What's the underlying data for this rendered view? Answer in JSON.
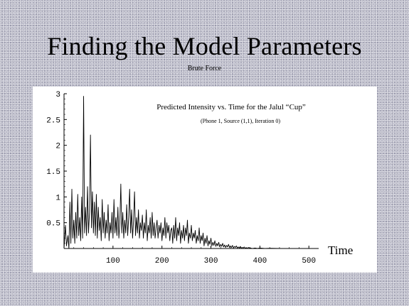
{
  "slide": {
    "title": "Finding the Model Parameters",
    "subtitle": "Brute Force"
  },
  "chart_data": {
    "type": "line",
    "title": "Predicted Intensity vs. Time for the Jalul “Cup”",
    "subtitle": "(Phone 1, Source (1,1), Iteration 0)",
    "xlabel": "Time",
    "ylabel": "",
    "xlim": [
      0,
      520
    ],
    "ylim": [
      0,
      3
    ],
    "x_ticks": [
      100,
      200,
      300,
      400,
      500
    ],
    "y_ticks": [
      0.5,
      1,
      1.5,
      2,
      2.5,
      3
    ],
    "x_tick_labels": [
      "100",
      "200",
      "300",
      "400",
      "500"
    ],
    "y_tick_labels": [
      "0.5",
      "1",
      "1.5",
      "2",
      "2.5",
      "3"
    ],
    "grid": false,
    "series": [
      {
        "color": "#000000",
        "points": [
          [
            0,
            0
          ],
          [
            3,
            0.45
          ],
          [
            5,
            0.05
          ],
          [
            8,
            0.25
          ],
          [
            10,
            0
          ],
          [
            12,
            0.9
          ],
          [
            14,
            0.1
          ],
          [
            16,
            1.15
          ],
          [
            18,
            0.2
          ],
          [
            20,
            0.55
          ],
          [
            22,
            0.1
          ],
          [
            24,
            0.7
          ],
          [
            26,
            0.2
          ],
          [
            28,
            1.05
          ],
          [
            30,
            0.25
          ],
          [
            32,
            0.6
          ],
          [
            34,
            0.15
          ],
          [
            36,
            1.0
          ],
          [
            38,
            0.2
          ],
          [
            40,
            2.95
          ],
          [
            42,
            0.3
          ],
          [
            44,
            0.8
          ],
          [
            46,
            0.25
          ],
          [
            48,
            1.2
          ],
          [
            50,
            0.3
          ],
          [
            52,
            0.7
          ],
          [
            54,
            2.2
          ],
          [
            56,
            0.4
          ],
          [
            58,
            1.1
          ],
          [
            60,
            0.3
          ],
          [
            62,
            0.9
          ],
          [
            64,
            0.25
          ],
          [
            66,
            1.05
          ],
          [
            68,
            0.2
          ],
          [
            70,
            0.8
          ],
          [
            72,
            0.35
          ],
          [
            74,
            0.6
          ],
          [
            76,
            0.15
          ],
          [
            78,
            0.95
          ],
          [
            80,
            0.3
          ],
          [
            82,
            0.7
          ],
          [
            84,
            0.2
          ],
          [
            86,
            0.55
          ],
          [
            88,
            0.3
          ],
          [
            90,
            0.85
          ],
          [
            92,
            0.15
          ],
          [
            94,
            0.5
          ],
          [
            96,
            0.3
          ],
          [
            98,
            0.7
          ],
          [
            100,
            0.2
          ],
          [
            102,
            0.95
          ],
          [
            104,
            0.3
          ],
          [
            106,
            0.6
          ],
          [
            108,
            0.25
          ],
          [
            110,
            0.8
          ],
          [
            112,
            0.2
          ],
          [
            114,
            0.5
          ],
          [
            116,
            1.25
          ],
          [
            118,
            0.3
          ],
          [
            120,
            0.7
          ],
          [
            122,
            0.2
          ],
          [
            124,
            0.55
          ],
          [
            126,
            0.3
          ],
          [
            128,
            0.85
          ],
          [
            130,
            0.25
          ],
          [
            132,
            0.6
          ],
          [
            134,
            1.15
          ],
          [
            136,
            0.3
          ],
          [
            138,
            0.75
          ],
          [
            140,
            0.2
          ],
          [
            142,
            0.55
          ],
          [
            144,
            1.1
          ],
          [
            146,
            0.25
          ],
          [
            148,
            0.6
          ],
          [
            150,
            0.3
          ],
          [
            152,
            0.75
          ],
          [
            154,
            0.2
          ],
          [
            156,
            0.5
          ],
          [
            158,
            0.35
          ],
          [
            160,
            0.65
          ],
          [
            162,
            0.2
          ],
          [
            164,
            0.5
          ],
          [
            166,
            0.3
          ],
          [
            168,
            0.75
          ],
          [
            170,
            0.15
          ],
          [
            172,
            0.45
          ],
          [
            174,
            0.3
          ],
          [
            176,
            0.6
          ],
          [
            178,
            0.2
          ],
          [
            180,
            0.7
          ],
          [
            182,
            0.25
          ],
          [
            184,
            0.5
          ],
          [
            186,
            0.2
          ],
          [
            188,
            0.4
          ],
          [
            190,
            0.55
          ],
          [
            192,
            0.2
          ],
          [
            194,
            0.45
          ],
          [
            196,
            0.3
          ],
          [
            198,
            0.5
          ],
          [
            200,
            0.15
          ],
          [
            202,
            0.4
          ],
          [
            204,
            0.25
          ],
          [
            206,
            0.6
          ],
          [
            208,
            0.2
          ],
          [
            210,
            0.5
          ],
          [
            212,
            0.3
          ],
          [
            214,
            0.45
          ],
          [
            216,
            0.15
          ],
          [
            218,
            0.35
          ],
          [
            220,
            0.4
          ],
          [
            222,
            0.1
          ],
          [
            224,
            0.45
          ],
          [
            226,
            0.2
          ],
          [
            228,
            0.6
          ],
          [
            230,
            0.15
          ],
          [
            232,
            0.4
          ],
          [
            234,
            0.25
          ],
          [
            236,
            0.5
          ],
          [
            238,
            0.1
          ],
          [
            240,
            0.35
          ],
          [
            242,
            0.2
          ],
          [
            244,
            0.45
          ],
          [
            246,
            0.15
          ],
          [
            248,
            0.4
          ],
          [
            250,
            0.25
          ],
          [
            252,
            0.55
          ],
          [
            254,
            0.1
          ],
          [
            256,
            0.3
          ],
          [
            258,
            0.2
          ],
          [
            260,
            0.45
          ],
          [
            262,
            0.15
          ],
          [
            264,
            0.3
          ],
          [
            266,
            0.2
          ],
          [
            268,
            0.35
          ],
          [
            270,
            0.1
          ],
          [
            272,
            0.25
          ],
          [
            274,
            0.15
          ],
          [
            276,
            0.4
          ],
          [
            278,
            0.1
          ],
          [
            280,
            0.25
          ],
          [
            282,
            0.15
          ],
          [
            284,
            0.3
          ],
          [
            286,
            0.05
          ],
          [
            288,
            0.2
          ],
          [
            290,
            0.1
          ],
          [
            292,
            0.25
          ],
          [
            294,
            0.05
          ],
          [
            296,
            0.15
          ],
          [
            298,
            0.08
          ],
          [
            300,
            0.2
          ],
          [
            302,
            0.05
          ],
          [
            304,
            0.12
          ],
          [
            306,
            0.06
          ],
          [
            308,
            0.15
          ],
          [
            310,
            0.04
          ],
          [
            312,
            0.1
          ],
          [
            314,
            0.05
          ],
          [
            316,
            0.12
          ],
          [
            318,
            0.03
          ],
          [
            320,
            0.08
          ],
          [
            322,
            0.04
          ],
          [
            324,
            0.1
          ],
          [
            326,
            0.03
          ],
          [
            328,
            0.07
          ],
          [
            330,
            0.02
          ],
          [
            332,
            0.06
          ],
          [
            334,
            0.03
          ],
          [
            336,
            0.08
          ],
          [
            338,
            0.02
          ],
          [
            340,
            0.05
          ],
          [
            342,
            0.02
          ],
          [
            344,
            0.06
          ],
          [
            346,
            0.01
          ],
          [
            348,
            0.04
          ],
          [
            350,
            0.02
          ],
          [
            352,
            0.05
          ],
          [
            354,
            0.01
          ],
          [
            356,
            0.03
          ],
          [
            358,
            0.01
          ],
          [
            360,
            0.04
          ],
          [
            362,
            0.01
          ],
          [
            364,
            0.02
          ],
          [
            366,
            0.01
          ],
          [
            368,
            0.03
          ],
          [
            370,
            0.0
          ],
          [
            372,
            0.02
          ],
          [
            374,
            0.0
          ],
          [
            376,
            0.02
          ],
          [
            380,
            0.01
          ],
          [
            385,
            0.0
          ],
          [
            390,
            0.01
          ],
          [
            395,
            0.0
          ],
          [
            400,
            0.01
          ],
          [
            410,
            0.0
          ],
          [
            420,
            0.005
          ],
          [
            440,
            0.0
          ],
          [
            470,
            0.0
          ],
          [
            500,
            0.0
          ],
          [
            520,
            0.0
          ]
        ]
      }
    ]
  }
}
